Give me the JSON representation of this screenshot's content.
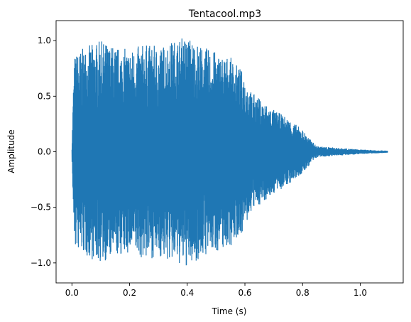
{
  "chart_data": {
    "type": "line",
    "title": "Tentacool.mp3",
    "xlabel": "Time (s)",
    "ylabel": "Amplitude",
    "xlim": [
      -0.055,
      1.149
    ],
    "ylim": [
      -1.18,
      1.18
    ],
    "x_ticks": [
      0.0,
      0.2,
      0.4,
      0.6,
      0.8,
      1.0
    ],
    "x_tick_labels": [
      "0.0",
      "0.2",
      "0.4",
      "0.6",
      "0.8",
      "1.0"
    ],
    "y_ticks": [
      -1.0,
      -0.5,
      0.0,
      0.5,
      1.0
    ],
    "y_tick_labels": [
      "−1.0",
      "−0.5",
      "0.0",
      "0.5",
      "1.0"
    ],
    "grid": false,
    "series": [
      {
        "color": "#1f77b4",
        "duration_s": 1.095,
        "peak_max": 1.08,
        "peak_min": -1.07,
        "envelope": {
          "t": [
            0.0,
            0.005,
            0.01,
            0.02,
            0.05,
            0.1,
            0.15,
            0.2,
            0.25,
            0.3,
            0.35,
            0.4,
            0.45,
            0.5,
            0.55,
            0.6,
            0.62,
            0.65,
            0.7,
            0.75,
            0.8,
            0.83,
            0.85,
            0.9,
            0.95,
            1.0,
            1.05,
            1.095
          ],
          "amp": [
            0.05,
            0.6,
            0.88,
            0.9,
            0.95,
            1.0,
            0.95,
            0.92,
            0.97,
            0.95,
            1.0,
            1.05,
            0.95,
            0.9,
            0.85,
            0.7,
            0.55,
            0.48,
            0.38,
            0.3,
            0.2,
            0.1,
            0.05,
            0.04,
            0.03,
            0.02,
            0.015,
            0.01
          ]
        }
      }
    ]
  }
}
